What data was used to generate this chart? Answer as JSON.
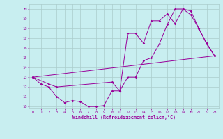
{
  "xlabel": "Windchill (Refroidissement éolien,°C)",
  "background_color": "#c8eef0",
  "grid_color": "#aacccc",
  "line_color": "#990099",
  "xlim": [
    -0.5,
    23.5
  ],
  "ylim": [
    9.8,
    20.5
  ],
  "xticks": [
    0,
    1,
    2,
    3,
    4,
    5,
    6,
    7,
    8,
    9,
    10,
    11,
    12,
    13,
    14,
    15,
    16,
    17,
    18,
    19,
    20,
    21,
    22,
    23
  ],
  "yticks": [
    10,
    11,
    12,
    13,
    14,
    15,
    16,
    17,
    18,
    19,
    20
  ],
  "line1_x": [
    0,
    1,
    2,
    3,
    4,
    5,
    6,
    7,
    8,
    9,
    10,
    11,
    12,
    13,
    14,
    15,
    16,
    17,
    18,
    19,
    20,
    21,
    22,
    23
  ],
  "line1_y": [
    13.0,
    12.3,
    12.0,
    11.0,
    10.4,
    10.6,
    10.5,
    10.0,
    10.0,
    10.1,
    11.6,
    11.6,
    13.0,
    13.0,
    14.7,
    15.0,
    16.4,
    18.4,
    20.0,
    20.0,
    19.4,
    18.0,
    16.4,
    15.2
  ],
  "line2_x": [
    0,
    2,
    3,
    10,
    11,
    12,
    13,
    14,
    15,
    16,
    17,
    18,
    19,
    20,
    21,
    22,
    23
  ],
  "line2_y": [
    13.0,
    12.3,
    12.0,
    12.5,
    11.6,
    17.5,
    17.5,
    16.5,
    18.8,
    18.8,
    19.5,
    18.5,
    20.0,
    19.8,
    18.0,
    16.5,
    15.2
  ],
  "line3_x": [
    0,
    23
  ],
  "line3_y": [
    13.0,
    15.2
  ],
  "tick_fontsize": 4.0,
  "xlabel_fontsize": 4.8,
  "marker_size": 1.8,
  "line_width": 0.7
}
